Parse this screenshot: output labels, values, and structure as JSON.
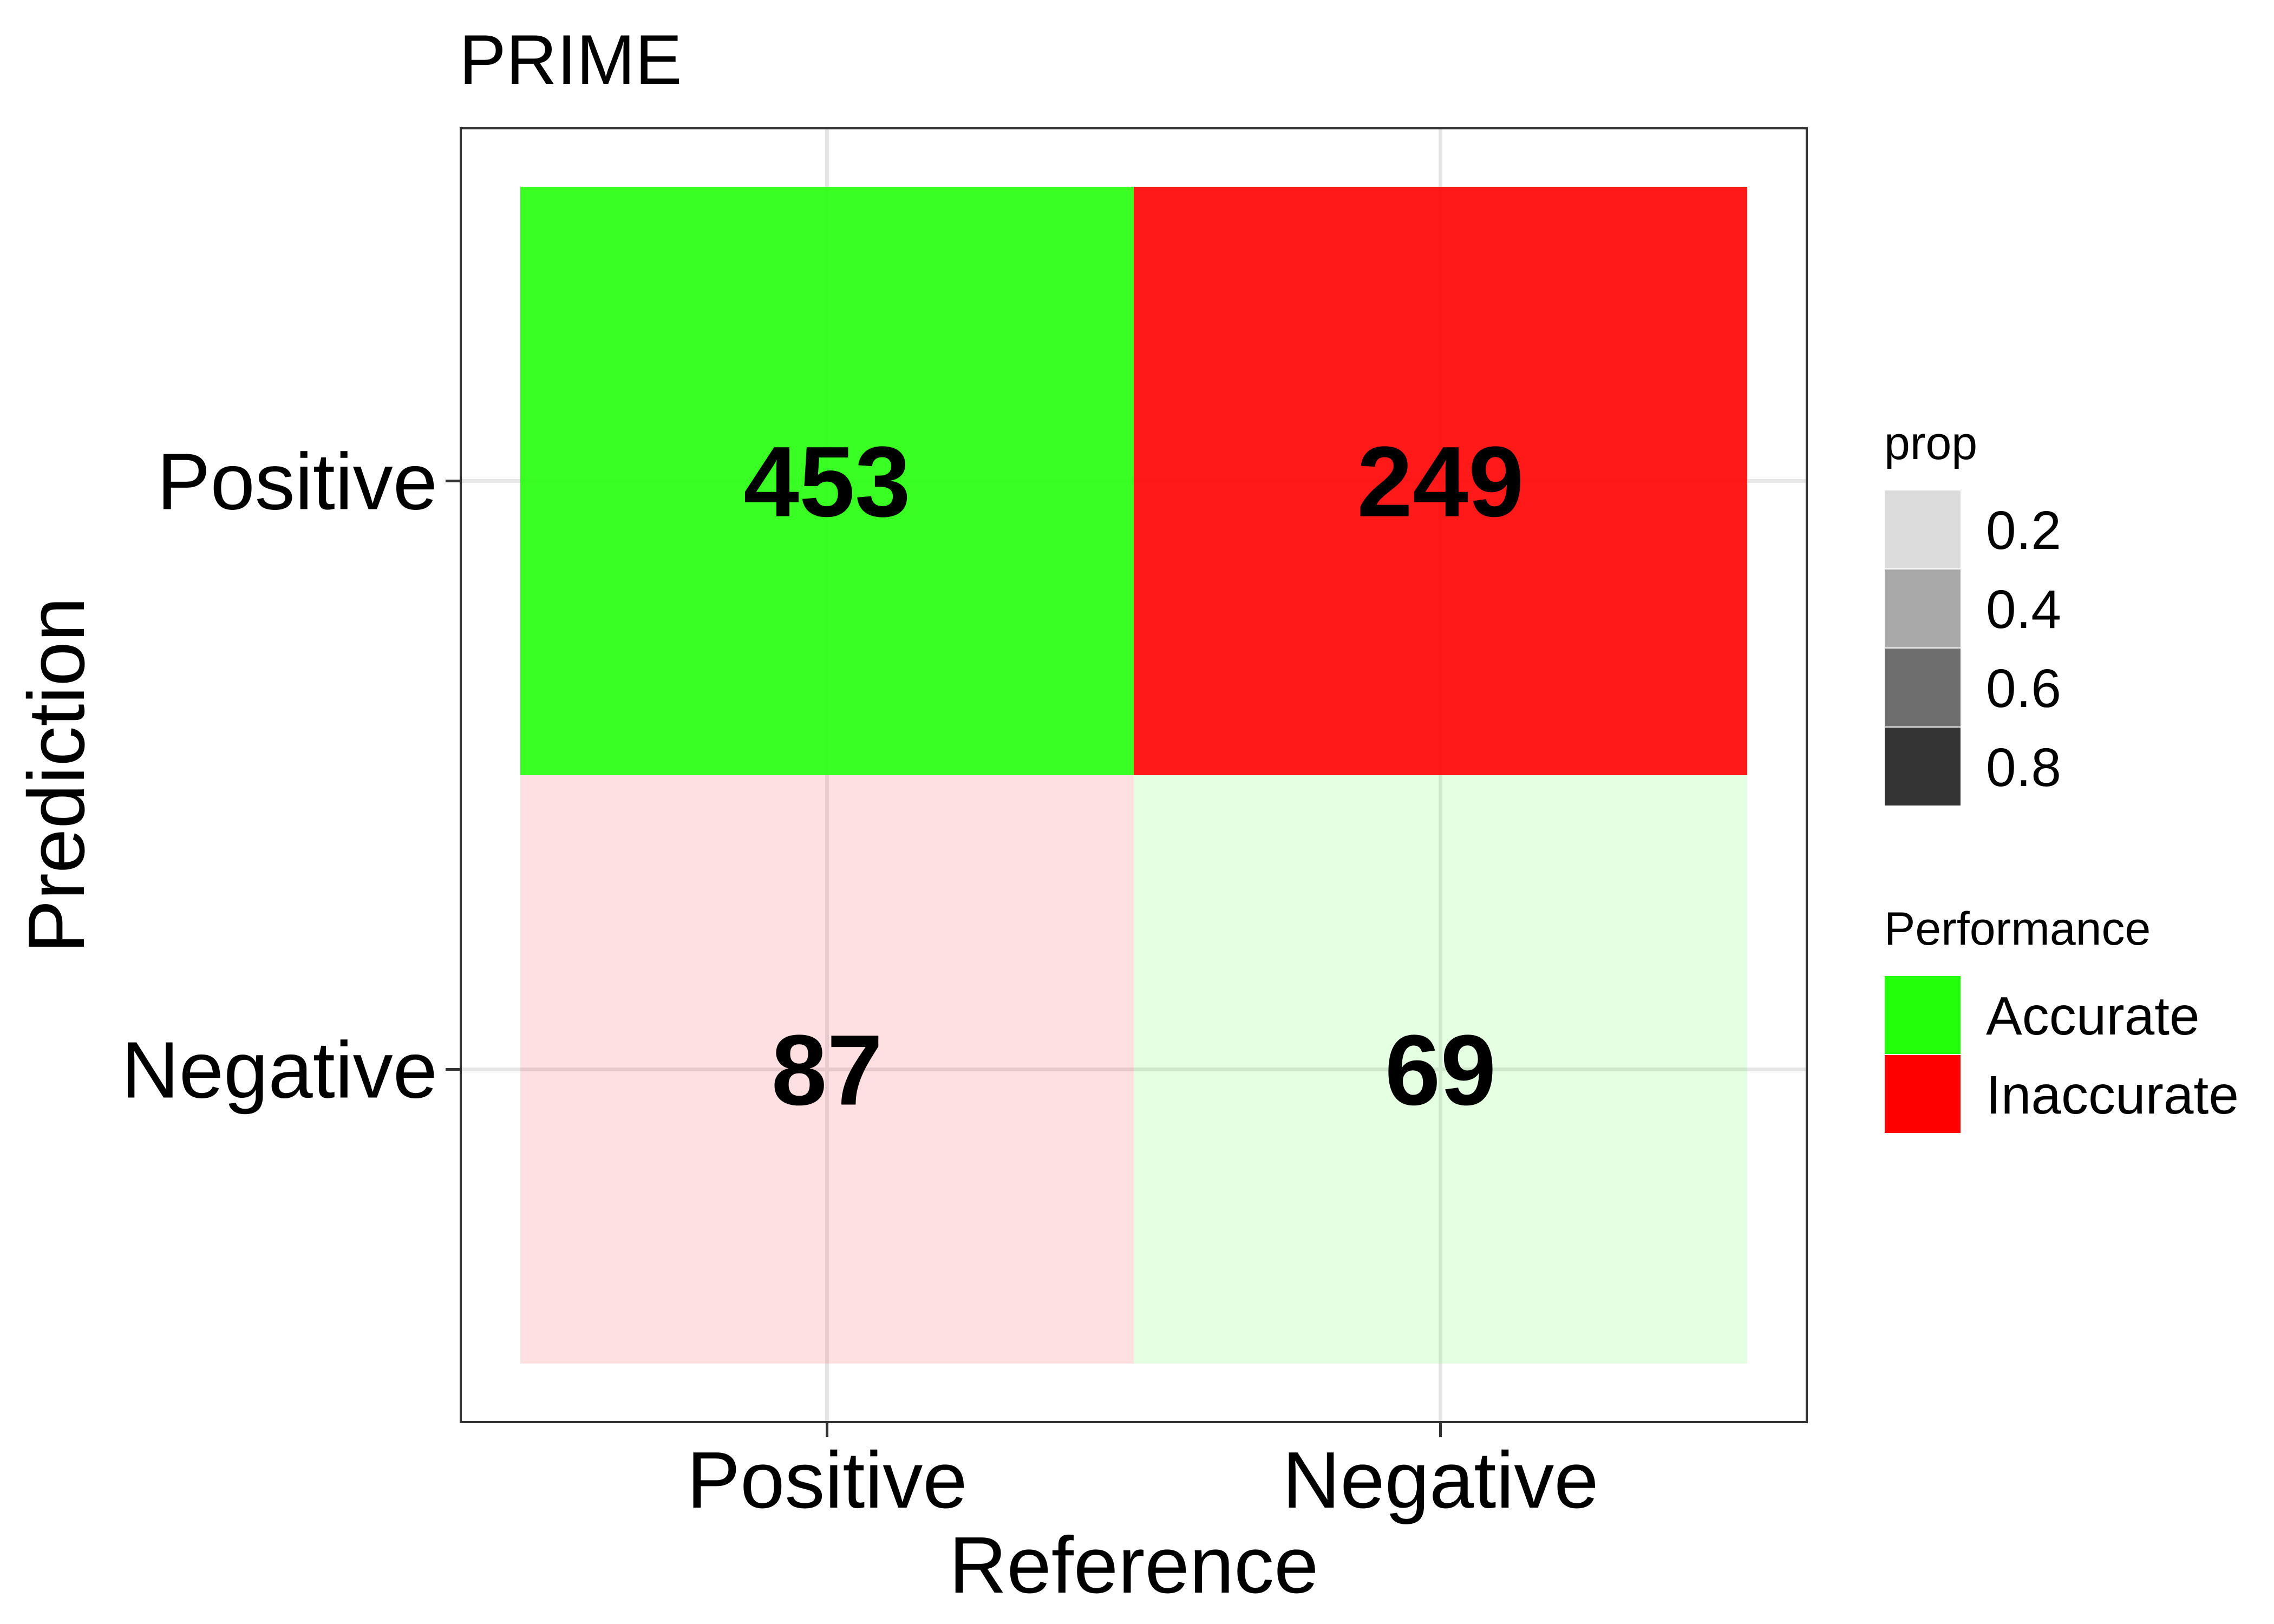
{
  "chart_data": {
    "type": "heatmap",
    "title": "PRIME",
    "xlabel": "Reference",
    "ylabel": "Prediction",
    "x_categories": [
      "Positive",
      "Negative"
    ],
    "y_categories": [
      "Positive",
      "Negative"
    ],
    "grid": true,
    "legend_position": "right",
    "cells": [
      {
        "reference": "Positive",
        "prediction": "Positive",
        "count": 453,
        "performance": "Accurate",
        "prop": 0.84
      },
      {
        "reference": "Negative",
        "prediction": "Positive",
        "count": 249,
        "performance": "Inaccurate",
        "prop": 0.78
      },
      {
        "reference": "Positive",
        "prediction": "Negative",
        "count": 87,
        "performance": "Inaccurate",
        "prop": 0.16
      },
      {
        "reference": "Negative",
        "prediction": "Negative",
        "count": 69,
        "performance": "Accurate",
        "prop": 0.22
      }
    ],
    "legend": {
      "prop": {
        "title": "prop",
        "levels": [
          {
            "label": "0.2",
            "color": "#dcdcdc"
          },
          {
            "label": "0.4",
            "color": "#a8a8a8"
          },
          {
            "label": "0.6",
            "color": "#6e6e6e"
          },
          {
            "label": "0.8",
            "color": "#333333"
          }
        ]
      },
      "performance": {
        "title": "Performance",
        "items": [
          {
            "label": "Accurate",
            "color": "#23ff0a"
          },
          {
            "label": "Inaccurate",
            "color": "#ff0000"
          }
        ]
      }
    }
  }
}
